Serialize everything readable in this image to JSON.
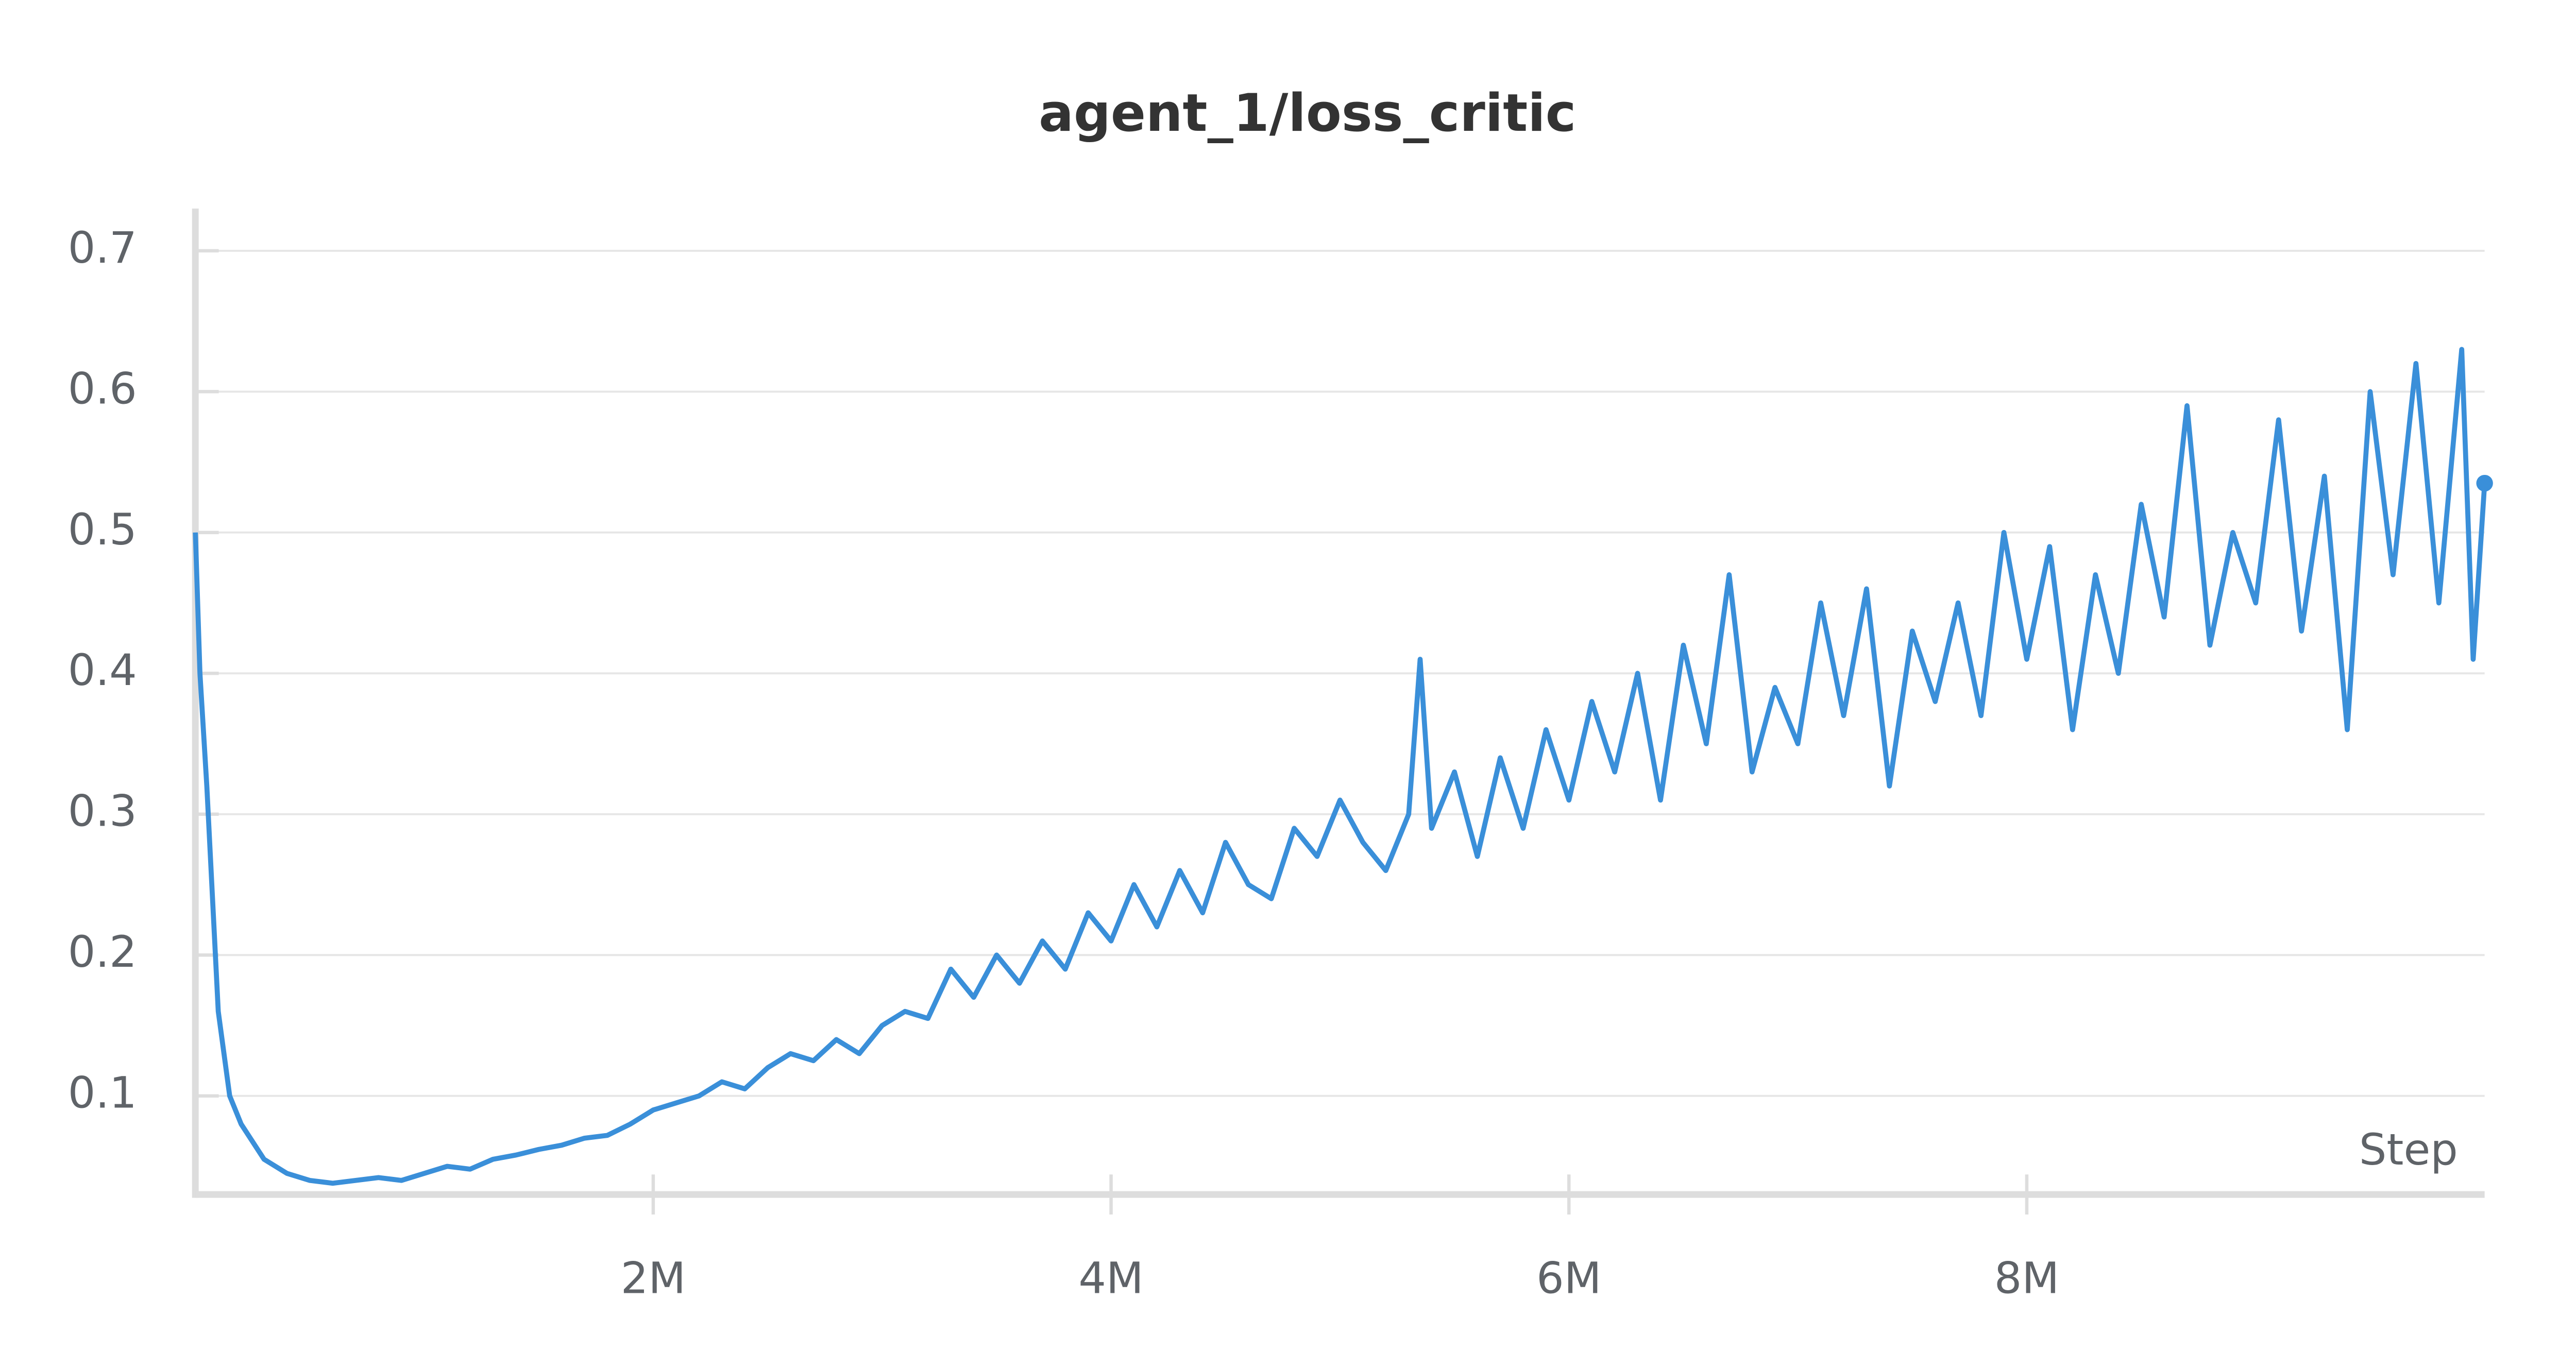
{
  "chart_data": {
    "type": "line",
    "title": "agent_1/loss_critic",
    "x_label": "Step",
    "x": [
      0,
      20000,
      50000,
      100000,
      150000,
      200000,
      300000,
      400000,
      500000,
      600000,
      700000,
      800000,
      900000,
      1000000,
      1100000,
      1200000,
      1300000,
      1400000,
      1500000,
      1600000,
      1700000,
      1800000,
      1900000,
      2000000,
      2100000,
      2200000,
      2300000,
      2400000,
      2500000,
      2600000,
      2700000,
      2800000,
      2900000,
      3000000,
      3100000,
      3200000,
      3300000,
      3400000,
      3500000,
      3600000,
      3700000,
      3800000,
      3900000,
      4000000,
      4100000,
      4200000,
      4300000,
      4400000,
      4500000,
      4600000,
      4700000,
      4800000,
      4900000,
      5000000,
      5100000,
      5200000,
      5300000,
      5350000,
      5400000,
      5500000,
      5600000,
      5700000,
      5800000,
      5900000,
      6000000,
      6100000,
      6200000,
      6300000,
      6400000,
      6500000,
      6600000,
      6700000,
      6800000,
      6900000,
      7000000,
      7100000,
      7200000,
      7300000,
      7400000,
      7500000,
      7600000,
      7700000,
      7800000,
      7900000,
      8000000,
      8100000,
      8200000,
      8300000,
      8400000,
      8500000,
      8600000,
      8700000,
      8800000,
      8900000,
      9000000,
      9100000,
      9200000,
      9300000,
      9400000,
      9500000,
      9600000,
      9700000,
      9800000,
      9900000,
      9950000,
      10000000
    ],
    "values": [
      0.5,
      0.4,
      0.32,
      0.16,
      0.1,
      0.08,
      0.055,
      0.045,
      0.04,
      0.038,
      0.04,
      0.042,
      0.04,
      0.045,
      0.05,
      0.048,
      0.055,
      0.058,
      0.062,
      0.065,
      0.07,
      0.072,
      0.08,
      0.09,
      0.095,
      0.1,
      0.11,
      0.105,
      0.12,
      0.13,
      0.125,
      0.14,
      0.13,
      0.15,
      0.16,
      0.155,
      0.19,
      0.17,
      0.2,
      0.18,
      0.21,
      0.19,
      0.23,
      0.21,
      0.25,
      0.22,
      0.26,
      0.23,
      0.28,
      0.25,
      0.24,
      0.29,
      0.27,
      0.31,
      0.28,
      0.26,
      0.3,
      0.41,
      0.29,
      0.33,
      0.27,
      0.34,
      0.29,
      0.36,
      0.31,
      0.38,
      0.33,
      0.4,
      0.31,
      0.42,
      0.35,
      0.47,
      0.33,
      0.39,
      0.35,
      0.45,
      0.37,
      0.46,
      0.32,
      0.43,
      0.38,
      0.45,
      0.37,
      0.5,
      0.41,
      0.49,
      0.36,
      0.47,
      0.4,
      0.52,
      0.44,
      0.59,
      0.42,
      0.5,
      0.45,
      0.58,
      0.43,
      0.54,
      0.36,
      0.6,
      0.47,
      0.62,
      0.45,
      0.63,
      0.41,
      0.535
    ],
    "color": "#3a8fd9",
    "xlim": [
      0,
      10000000
    ],
    "xticks": [
      {
        "value": 2000000,
        "label": "2M"
      },
      {
        "value": 4000000,
        "label": "4M"
      },
      {
        "value": 6000000,
        "label": "6M"
      },
      {
        "value": 8000000,
        "label": "8M"
      }
    ],
    "ylim": [
      0.03,
      0.73
    ],
    "yticks": [
      0.1,
      0.2,
      0.3,
      0.4,
      0.5,
      0.6,
      0.7
    ],
    "grid": true
  }
}
